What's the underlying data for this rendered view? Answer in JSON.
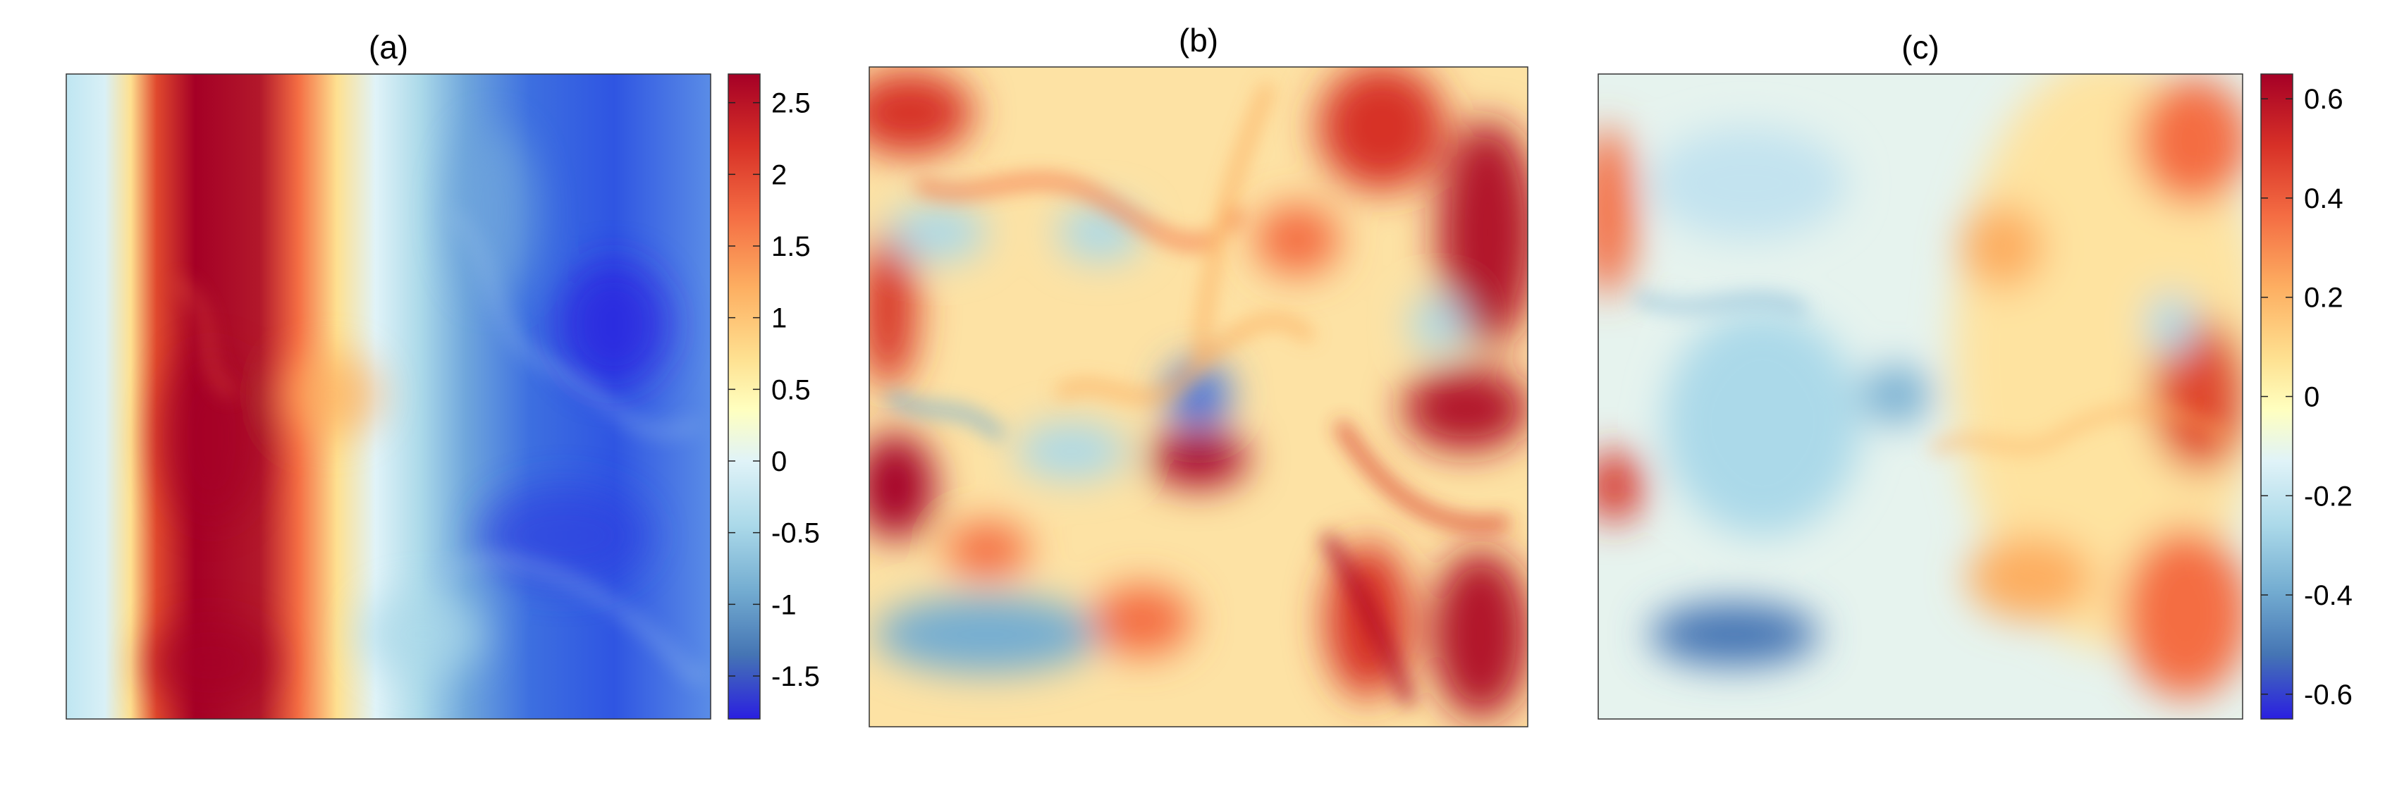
{
  "chart_data": [
    {
      "type": "heatmap",
      "title": "(a)",
      "colorbar": {
        "ticks": [
          2.5,
          2,
          1.5,
          1,
          0.5,
          0,
          -0.5,
          -1,
          -1.5
        ],
        "tick_labels": [
          "2.5",
          "2",
          "1.5",
          "1",
          "0.5",
          "0",
          "-0.5",
          "-1",
          "-1.5"
        ],
        "clim": [
          -1.8,
          2.7
        ],
        "colormap": "blue-white-red"
      }
    },
    {
      "type": "heatmap",
      "title": "(b)"
    },
    {
      "type": "heatmap",
      "title": "(c)",
      "colorbar": {
        "ticks": [
          0.6,
          0.4,
          0.2,
          0,
          -0.2,
          -0.4,
          -0.6
        ],
        "tick_labels": [
          "0.6",
          "0.4",
          "0.2",
          "0",
          "-0.2",
          "-0.4",
          "-0.6"
        ],
        "clim": [
          -0.65,
          0.65
        ],
        "colormap": "blue-white-red"
      }
    }
  ],
  "colors": {
    "deep_red": "#a50026",
    "red": "#d73027",
    "orange": "#f46d43",
    "light_orange": "#fdae61",
    "pale_yellow": "#fee090",
    "cream": "#ffffbf",
    "pale_cyan": "#e0f3f8",
    "light_blue": "#abd9e9",
    "blue": "#4575b4",
    "deep_blue": "#2a1fe0"
  }
}
